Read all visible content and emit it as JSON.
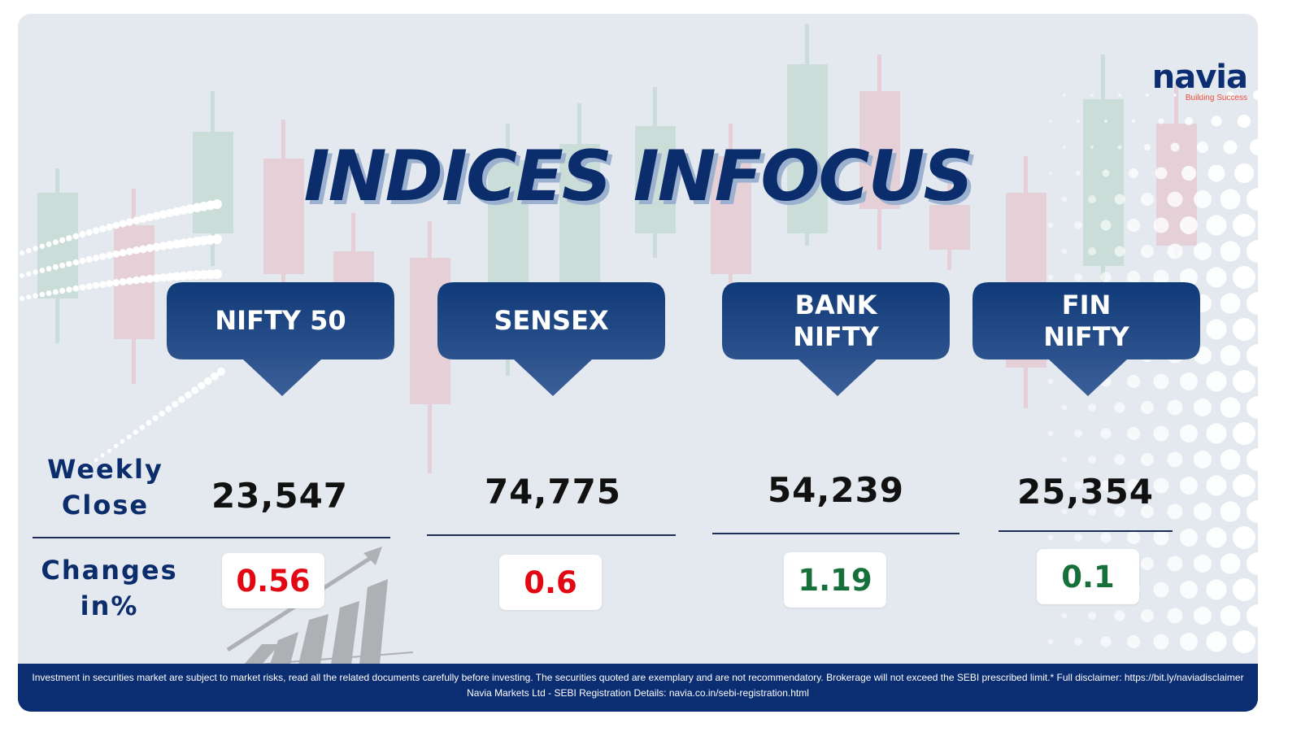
{
  "brand": {
    "logo_text": "navia",
    "logo_tagline": "Building Success",
    "accent_color": "#ef4c3d",
    "primary_color": "#0b2d72"
  },
  "title": "INDICES INFOCUS",
  "row_labels": {
    "weekly_close": "Weekly\nClose",
    "changes": "Changes\nin%"
  },
  "indices": [
    {
      "name": "NIFTY 50",
      "weekly_close": "23,547",
      "change": "0.56",
      "change_color": "#e30613"
    },
    {
      "name": "SENSEX",
      "weekly_close": "74,775",
      "change": "0.6",
      "change_color": "#e30613"
    },
    {
      "name": "BANK\nNIFTY",
      "weekly_close": "54,239",
      "change": "1.19",
      "change_color": "#16703a"
    },
    {
      "name": "FIN\nNIFTY",
      "weekly_close": "25,354",
      "change": "0.1",
      "change_color": "#16703a"
    }
  ],
  "footer": {
    "line1": "Investment in securities market are subject to market risks, read all the related documents carefully before investing. The securities quoted are exemplary and are not recommendatory. Brokerage will not exceed the SEBI prescribed limit.* Full disclaimer: https://bit.ly/naviadisclaimer",
    "line2": "Navia Markets Ltd - SEBI Registration Details: navia.co.in/sebi-registration.html"
  }
}
